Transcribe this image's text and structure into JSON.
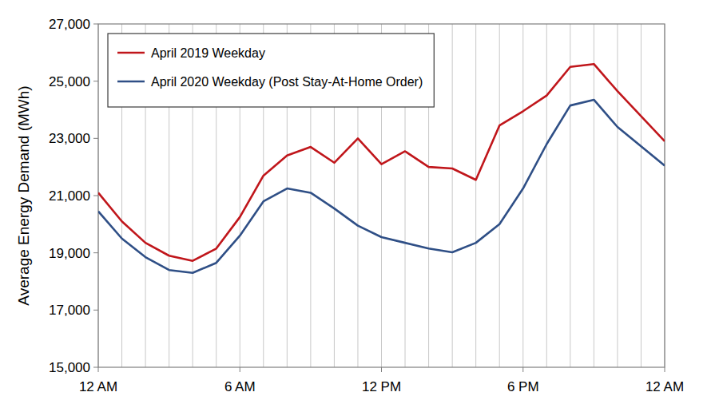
{
  "chart_data": {
    "type": "line",
    "y_label": "Average Energy Demand (MWh)",
    "x": [
      0,
      1,
      2,
      3,
      4,
      5,
      6,
      7,
      8,
      9,
      10,
      11,
      12,
      13,
      14,
      15,
      16,
      17,
      18,
      19,
      20,
      21,
      22,
      24
    ],
    "series": [
      {
        "name": "April 2019 Weekday",
        "color": "#c0161b",
        "values": [
          21100,
          20100,
          19350,
          18900,
          18720,
          19150,
          20250,
          21700,
          22400,
          22700,
          22150,
          23000,
          22100,
          22550,
          22000,
          21950,
          21550,
          23450,
          23950,
          24500,
          25500,
          25600,
          24650,
          22900
        ]
      },
      {
        "name": "April 2020 Weekday (Post Stay-At-Home Order)",
        "color": "#2f4f86",
        "values": [
          20450,
          19500,
          18850,
          18400,
          18300,
          18650,
          19600,
          20800,
          21250,
          21100,
          20550,
          19950,
          19550,
          19350,
          19150,
          19020,
          19350,
          20000,
          21250,
          22800,
          24150,
          24350,
          23400,
          22050
        ]
      }
    ],
    "xlim": [
      0,
      24
    ],
    "xticks": [
      {
        "value": 0,
        "label": "12 AM"
      },
      {
        "value": 6,
        "label": "6 AM"
      },
      {
        "value": 12,
        "label": "12 PM"
      },
      {
        "value": 18,
        "label": "6 PM"
      },
      {
        "value": 24,
        "label": "12 AM"
      }
    ],
    "ylim": [
      15000,
      27000
    ],
    "yticks": [
      {
        "value": 15000,
        "label": "15,000"
      },
      {
        "value": 17000,
        "label": "17,000"
      },
      {
        "value": 19000,
        "label": "19,000"
      },
      {
        "value": 21000,
        "label": "21,000"
      },
      {
        "value": 23000,
        "label": "23,000"
      },
      {
        "value": 25000,
        "label": "25,000"
      },
      {
        "value": 27000,
        "label": "27,000"
      }
    ],
    "grid": true,
    "legend": "upper left"
  }
}
